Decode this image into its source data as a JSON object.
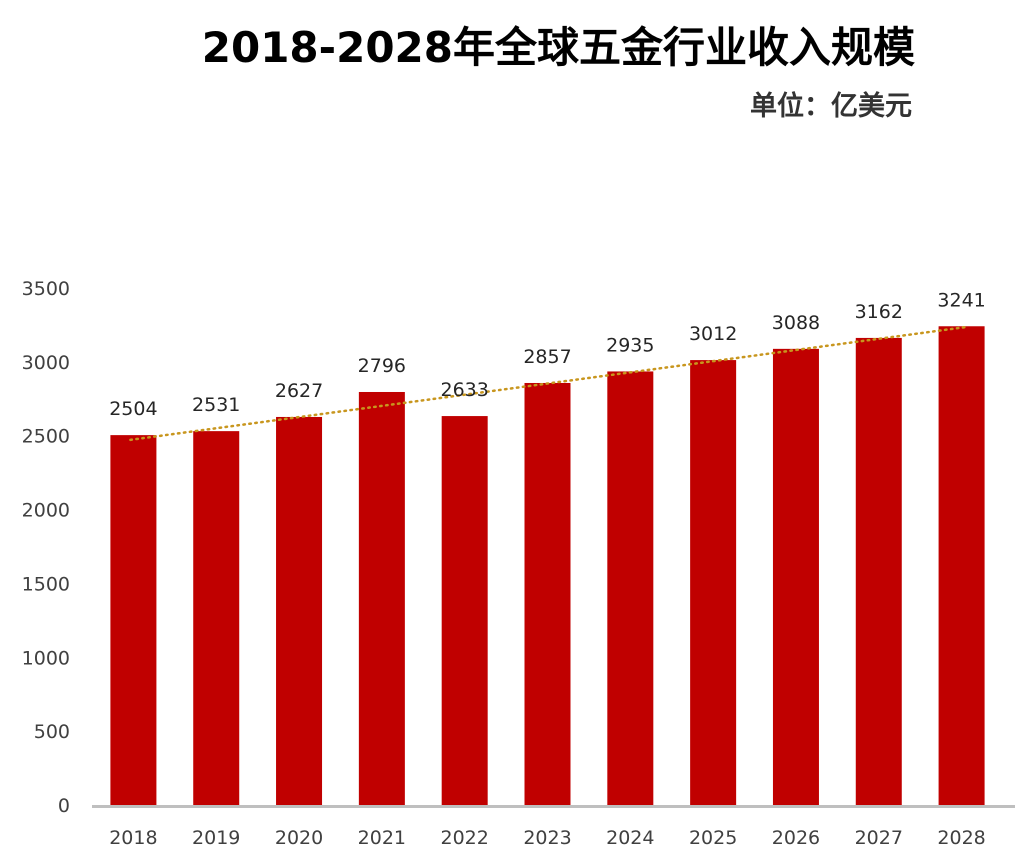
{
  "chart_data": {
    "type": "bar",
    "title": "2018-2028年全球五金行业收入规模",
    "subtitle": "单位：亿美元",
    "categories": [
      "2018",
      "2019",
      "2020",
      "2021",
      "2022",
      "2023",
      "2024",
      "2025",
      "2026",
      "2027",
      "2028"
    ],
    "series": [
      {
        "values": [
          2504,
          2531,
          2627,
          2796,
          2633,
          2857,
          2935,
          3012,
          3088,
          3162,
          3241
        ]
      }
    ],
    "data_labels": [
      "2504",
      "2531",
      "2627",
      "2796",
      "2633",
      "2857",
      "2935",
      "3012",
      "3088",
      "3162",
      "3241"
    ],
    "y_ticks": [
      "0",
      "500",
      "1000",
      "1500",
      "2000",
      "2500",
      "3000",
      "3500"
    ],
    "ylim": [
      0,
      3500
    ],
    "trendline": {
      "type": "linear",
      "style": "dotted"
    },
    "grid": false,
    "legend": "none",
    "colors": {
      "bar": "#C00000",
      "trendline": "#C8961E",
      "axis": "#BFBFBF"
    }
  }
}
